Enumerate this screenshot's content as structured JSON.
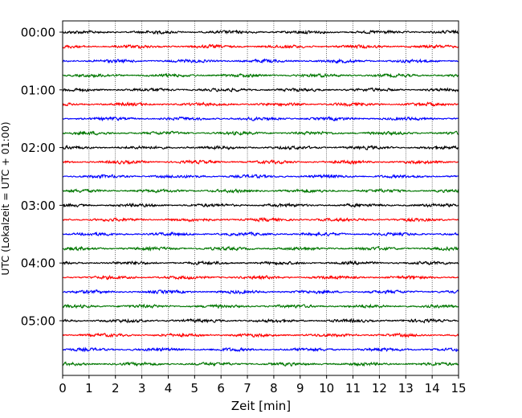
{
  "chart_data": {
    "type": "line",
    "xlabel": "Zeit  [min]",
    "ylabel": "UTC (Lokalzeit = UTC + 01:00)",
    "xlim": [
      0,
      15
    ],
    "x_ticks": [
      "0",
      "1",
      "2",
      "3",
      "4",
      "5",
      "6",
      "7",
      "8",
      "9",
      "10",
      "11",
      "12",
      "13",
      "14",
      "15"
    ],
    "y_ticks": [
      {
        "label": "00:00",
        "trace": 0
      },
      {
        "label": "01:00",
        "trace": 4
      },
      {
        "label": "02:00",
        "trace": 8
      },
      {
        "label": "03:00",
        "trace": 12
      },
      {
        "label": "04:00",
        "trace": 16
      },
      {
        "label": "05:00",
        "trace": 20
      }
    ],
    "grid": "vertical dotted",
    "trace_count": 24,
    "trace_minutes": 15,
    "trace_colors": [
      "#000000",
      "#ff0000",
      "#0000ff",
      "#007700"
    ]
  }
}
